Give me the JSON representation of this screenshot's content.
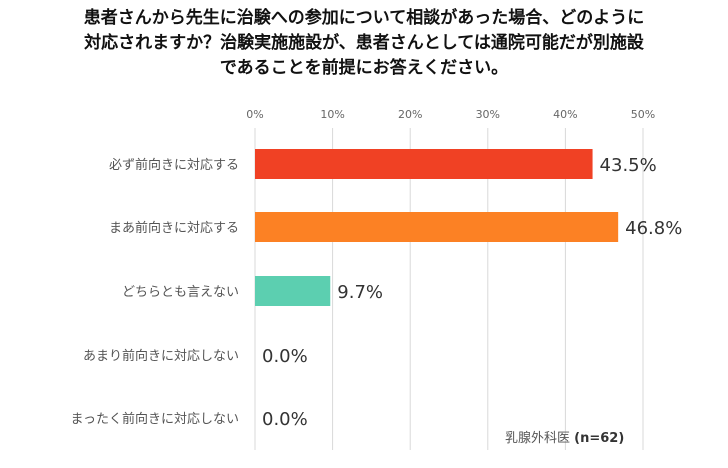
{
  "title_lines": [
    "患者さんから先生に治験への参加について相談があった場合、どのように",
    "対応されますか？治験実施施設が、患者さんとしては通院可能だが別施設",
    "であることを前提にお答えください。"
  ],
  "note": {
    "group": "乳腺外科医",
    "n": "(n=62)"
  },
  "colors": {
    "grid": "#d9d9d9",
    "axis_text": "#666666",
    "label_text": "#555555",
    "value_text": "#333333"
  },
  "chart_data": {
    "type": "bar",
    "orientation": "horizontal",
    "title": "患者さんから先生に治験への参加について相談があった場合、どのように対応されますか？治験実施施設が、患者さんとしては通院可能だが別施設であることを前提にお答えください。",
    "categories": [
      "必ず前向きに対応する",
      "まあ前向きに対応する",
      "どちらとも言えない",
      "あまり前向きに対応しない",
      "まったく前向きに対応しない"
    ],
    "values": [
      43.5,
      46.8,
      9.7,
      0.0,
      0.0
    ],
    "value_labels": [
      "43.5%",
      "46.8%",
      "9.7%",
      "0.0%",
      "0.0%"
    ],
    "bar_colors": [
      "#f04124",
      "#fc8124",
      "#5ccfb0",
      "#cccccc",
      "#cccccc"
    ],
    "xlim": [
      0,
      50
    ],
    "xticks": [
      0,
      10,
      20,
      30,
      40,
      50
    ],
    "xtick_labels": [
      "0%",
      "10%",
      "20%",
      "30%",
      "40%",
      "50%"
    ],
    "grid": true,
    "xlabel": "",
    "ylabel": ""
  }
}
